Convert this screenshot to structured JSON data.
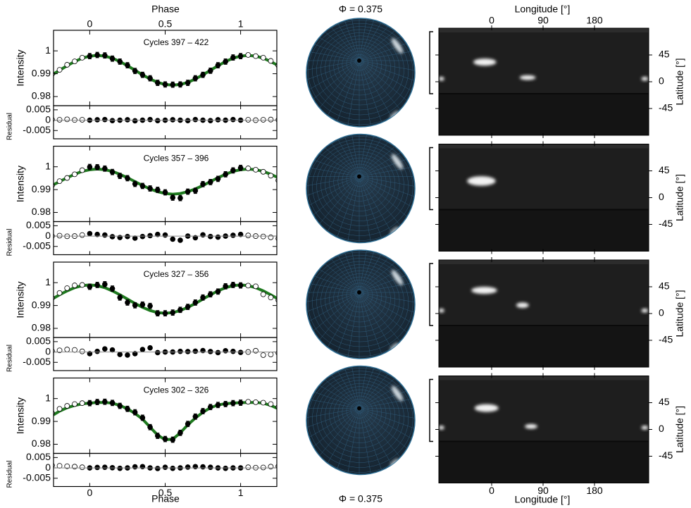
{
  "figure": {
    "phase_label": "Phase",
    "longitude_label": "Longitude [°]",
    "sphere_phase_label": "Φ = 0.375"
  },
  "chart_data": [
    {
      "type": "line",
      "title": "Cycles 397 – 422",
      "y_label": "Intensity",
      "xlim": [
        -0.24,
        1.24
      ],
      "xticks": [
        0,
        0.5,
        1
      ],
      "ylim": [
        0.976,
        1.009
      ],
      "yticks": [
        0.98,
        0.99,
        1
      ],
      "model": {
        "color": "#1f7a1f",
        "x": [
          -0.25,
          -0.2,
          -0.15,
          -0.1,
          -0.05,
          0,
          0.05,
          0.1,
          0.15,
          0.2,
          0.25,
          0.3,
          0.35,
          0.4,
          0.45,
          0.5,
          0.55,
          0.6,
          0.65,
          0.7,
          0.75,
          0.8,
          0.85,
          0.9,
          0.95,
          1,
          1.05,
          1.1,
          1.15,
          1.2,
          1.25
        ],
        "values": [
          0.9895,
          0.9915,
          0.9935,
          0.9953,
          0.9968,
          0.9977,
          0.998,
          0.9977,
          0.9968,
          0.9953,
          0.9935,
          0.9915,
          0.9895,
          0.9877,
          0.9862,
          0.9853,
          0.985,
          0.9853,
          0.9862,
          0.9877,
          0.9895,
          0.9915,
          0.9935,
          0.9953,
          0.9968,
          0.9977,
          0.998,
          0.9977,
          0.9968,
          0.9953,
          0.9935
        ]
      },
      "observed": {
        "x": [
          0,
          0.05,
          0.1,
          0.15,
          0.2,
          0.25,
          0.3,
          0.35,
          0.4,
          0.45,
          0.5,
          0.55,
          0.6,
          0.65,
          0.7,
          0.75,
          0.8,
          0.85,
          0.9,
          0.95,
          1
        ],
        "error": 0.0012,
        "values": [
          0.9977,
          0.9982,
          0.998,
          0.9966,
          0.9953,
          0.9937,
          0.9912,
          0.9895,
          0.988,
          0.986,
          0.9853,
          0.9852,
          0.9853,
          0.986,
          0.988,
          0.9895,
          0.9913,
          0.9937,
          0.9953,
          0.9971,
          0.9977
        ]
      },
      "repeated": {
        "x": [
          -0.25,
          -0.2,
          -0.15,
          -0.1,
          -0.05,
          1.05,
          1.1,
          1.15,
          1.2,
          1.25
        ],
        "values": [
          0.9898,
          0.9917,
          0.9939,
          0.9954,
          0.997,
          0.9982,
          0.9977,
          0.997,
          0.9956,
          0.9936
        ]
      },
      "residuals": {
        "y_label": "Residual",
        "ylim": [
          -0.009,
          0.007
        ],
        "yticks": [
          0.005,
          0,
          -0.005
        ],
        "observed": [
          0,
          0.0002,
          0.0003,
          -0.0002,
          0,
          0.0002,
          -0.0003,
          0,
          0.0003,
          -0.0002,
          0,
          0.0002,
          0,
          -0.0002,
          0.0003,
          0,
          -0.0002,
          0.0002,
          0,
          0.0003,
          0
        ],
        "repeated": [
          0.0003,
          0.0002,
          0.0004,
          0.0001,
          0.0002,
          0.0002,
          0,
          0.0002,
          0.0003,
          0.0001
        ]
      },
      "map": {
        "xlim": [
          -90,
          270
        ],
        "xticks": [
          0,
          90,
          180
        ],
        "ylim": [
          -90,
          90
        ],
        "yticks": [
          45,
          0,
          -45
        ],
        "latitude_label": "Latitude [°]",
        "spots": [
          {
            "lon": -12,
            "lat": 33,
            "dlon": 40,
            "dlat": 12
          },
          {
            "lon": 63,
            "lat": 7,
            "dlon": 28,
            "dlat": 8
          },
          {
            "lon": -88,
            "lat": 5,
            "dlon": 10,
            "dlat": 7
          },
          {
            "lon": 268,
            "lat": 5,
            "dlon": 12,
            "dlat": 7
          }
        ]
      }
    },
    {
      "type": "line",
      "title": "Cycles 357 – 396",
      "y_label": "Intensity",
      "xlim": [
        -0.24,
        1.24
      ],
      "xticks": [
        0,
        0.5,
        1
      ],
      "ylim": [
        0.976,
        1.009
      ],
      "yticks": [
        0.98,
        0.99,
        1
      ],
      "model": {
        "color": "#1f7a1f",
        "x": [
          -0.25,
          -0.2,
          -0.15,
          -0.1,
          -0.05,
          0,
          0.05,
          0.1,
          0.15,
          0.2,
          0.25,
          0.3,
          0.35,
          0.4,
          0.45,
          0.5,
          0.55,
          0.6,
          0.65,
          0.7,
          0.75,
          0.8,
          0.85,
          0.9,
          0.95,
          1,
          1.05,
          1.1,
          1.15,
          1.2,
          1.25
        ],
        "values": [
          0.9918,
          0.9935,
          0.9952,
          0.9967,
          0.998,
          0.9987,
          0.999,
          0.9987,
          0.998,
          0.9967,
          0.9952,
          0.9935,
          0.9918,
          0.9903,
          0.9891,
          0.9883,
          0.988,
          0.9883,
          0.9891,
          0.9903,
          0.9918,
          0.9935,
          0.9952,
          0.9967,
          0.998,
          0.9987,
          0.999,
          0.9987,
          0.998,
          0.9967,
          0.9952
        ]
      },
      "observed": {
        "x": [
          0,
          0.05,
          0.1,
          0.15,
          0.2,
          0.25,
          0.3,
          0.35,
          0.4,
          0.45,
          0.5,
          0.55,
          0.6,
          0.65,
          0.7,
          0.75,
          0.8,
          0.85,
          0.9,
          0.95,
          1
        ],
        "error": 0.0012,
        "values": [
          0.9999,
          0.9998,
          0.9992,
          0.9977,
          0.996,
          0.995,
          0.9925,
          0.9916,
          0.9905,
          0.9899,
          0.9888,
          0.9865,
          0.9863,
          0.9891,
          0.9895,
          0.9924,
          0.9933,
          0.9947,
          0.9967,
          0.9984,
          0.9995
        ]
      },
      "repeated": {
        "x": [
          -0.25,
          -0.2,
          -0.15,
          -0.1,
          -0.05,
          1.05,
          1.1,
          1.15,
          1.2,
          1.25
        ],
        "values": [
          0.9918,
          0.9937,
          0.9951,
          0.9967,
          0.9985,
          0.9993,
          0.9987,
          0.9978,
          0.9961,
          0.994
        ]
      },
      "residuals": {
        "y_label": "Residual",
        "ylim": [
          -0.009,
          0.007
        ],
        "yticks": [
          0.005,
          0,
          -0.005
        ],
        "observed": [
          0.0012,
          0.0008,
          0.0005,
          -0.0003,
          -0.0007,
          -0.0002,
          -0.001,
          -0.0002,
          0.0002,
          0.0008,
          0.0005,
          -0.0015,
          -0.002,
          0,
          -0.0008,
          0.0006,
          -0.0002,
          -0.0005,
          0,
          0.0004,
          0.0008
        ],
        "repeated": [
          0,
          0.0002,
          -0.0001,
          0,
          0.0005,
          0.0003,
          0,
          -0.0002,
          -0.0006,
          -0.0012
        ]
      },
      "map": {
        "xlim": [
          -90,
          270
        ],
        "xticks": [
          0,
          90,
          180
        ],
        "ylim": [
          -90,
          90
        ],
        "yticks": [
          45,
          0,
          -45
        ],
        "latitude_label": "Latitude [°]",
        "spots": [
          {
            "lon": -18,
            "lat": 28,
            "dlon": 50,
            "dlat": 16
          }
        ]
      }
    },
    {
      "type": "line",
      "title": "Cycles 327 – 356",
      "y_label": "Intensity",
      "xlim": [
        -0.24,
        1.24
      ],
      "xticks": [
        0,
        0.5,
        1
      ],
      "ylim": [
        0.976,
        1.009
      ],
      "yticks": [
        0.98,
        0.99,
        1
      ],
      "model": {
        "color": "#1f7a1f",
        "x": [
          -0.25,
          -0.2,
          -0.15,
          -0.1,
          -0.05,
          0,
          0.05,
          0.1,
          0.15,
          0.2,
          0.25,
          0.3,
          0.35,
          0.4,
          0.45,
          0.5,
          0.55,
          0.6,
          0.65,
          0.7,
          0.75,
          0.8,
          0.85,
          0.9,
          0.95,
          1,
          1.05,
          1.1,
          1.15,
          1.2,
          1.25
        ],
        "values": [
          0.9928,
          0.9947,
          0.9964,
          0.9978,
          0.9987,
          0.999,
          0.9987,
          0.9978,
          0.9964,
          0.9947,
          0.9928,
          0.9909,
          0.9892,
          0.9878,
          0.9869,
          0.9866,
          0.9869,
          0.9878,
          0.9892,
          0.9909,
          0.9928,
          0.9947,
          0.9964,
          0.9978,
          0.9987,
          0.999,
          0.9987,
          0.9978,
          0.9964,
          0.9947,
          0.9928
        ]
      },
      "observed": {
        "x": [
          0,
          0.05,
          0.1,
          0.15,
          0.2,
          0.25,
          0.3,
          0.35,
          0.4,
          0.45,
          0.5,
          0.55,
          0.6,
          0.65,
          0.7,
          0.75,
          0.8,
          0.85,
          0.9,
          0.95,
          1
        ],
        "error": 0.0012,
        "values": [
          0.9982,
          0.999,
          0.9993,
          0.9974,
          0.9935,
          0.9913,
          0.9901,
          0.9904,
          0.9898,
          0.9866,
          0.9866,
          0.9869,
          0.9881,
          0.9894,
          0.9913,
          0.9935,
          0.9949,
          0.9961,
          0.9984,
          0.999,
          0.9988
        ]
      },
      "repeated": {
        "x": [
          -0.25,
          -0.2,
          -0.15,
          -0.1,
          -0.05,
          1.05,
          1.1,
          1.15,
          1.2,
          1.25
        ],
        "values": [
          0.9933,
          0.9955,
          0.9976,
          0.9988,
          0.999,
          0.9987,
          0.9984,
          0.9949,
          0.9935,
          0.9923
        ]
      },
      "residuals": {
        "y_label": "Residual",
        "ylim": [
          -0.009,
          0.007
        ],
        "yticks": [
          0.005,
          0,
          -0.005
        ],
        "observed": [
          -0.0008,
          0.0003,
          0.0015,
          0.001,
          -0.0012,
          -0.0015,
          -0.0008,
          0.0012,
          0.002,
          -0.0003,
          0,
          0,
          0.0003,
          0.0002,
          0.0004,
          0.0007,
          0.0002,
          -0.0003,
          0.0006,
          0.0003,
          -0.0002
        ],
        "repeated": [
          0.0005,
          0.0008,
          0.0012,
          0.001,
          0.0003,
          0,
          0.0006,
          -0.0015,
          -0.0012,
          -0.0005
        ]
      },
      "map": {
        "xlim": [
          -90,
          270
        ],
        "xticks": [
          0,
          90,
          180
        ],
        "ylim": [
          -90,
          90
        ],
        "yticks": [
          45,
          0,
          -45
        ],
        "latitude_label": "Latitude [°]",
        "spots": [
          {
            "lon": -13,
            "lat": 39,
            "dlon": 45,
            "dlat": 12
          },
          {
            "lon": 54,
            "lat": 14,
            "dlon": 22,
            "dlat": 9
          },
          {
            "lon": -88,
            "lat": 5,
            "dlon": 10,
            "dlat": 7
          },
          {
            "lon": 268,
            "lat": 5,
            "dlon": 12,
            "dlat": 7
          }
        ]
      }
    },
    {
      "type": "line",
      "title": "Cycles 302 – 326",
      "y_label": "Intensity",
      "xlim": [
        -0.24,
        1.24
      ],
      "xticks": [
        0,
        0.5,
        1
      ],
      "ylim": [
        0.976,
        1.009
      ],
      "yticks": [
        0.98,
        0.99,
        1
      ],
      "model": {
        "color": "#1f7a1f",
        "x": [
          -0.25,
          -0.2,
          -0.15,
          -0.1,
          -0.05,
          0,
          0.05,
          0.1,
          0.15,
          0.2,
          0.25,
          0.3,
          0.35,
          0.4,
          0.45,
          0.5,
          0.55,
          0.6,
          0.65,
          0.7,
          0.75,
          0.8,
          0.85,
          0.9,
          0.95,
          1,
          1.05,
          1.1,
          1.15,
          1.2,
          1.25
        ],
        "values": [
          0.9925,
          0.9945,
          0.996,
          0.997,
          0.9977,
          0.998,
          0.9983,
          0.9983,
          0.998,
          0.997,
          0.9955,
          0.9935,
          0.991,
          0.9875,
          0.984,
          0.982,
          0.9822,
          0.985,
          0.9885,
          0.9915,
          0.994,
          0.996,
          0.9972,
          0.9978,
          0.998,
          0.9982,
          0.9983,
          0.9983,
          0.998,
          0.997,
          0.9955
        ]
      },
      "observed": {
        "x": [
          0,
          0.05,
          0.1,
          0.15,
          0.2,
          0.25,
          0.3,
          0.35,
          0.4,
          0.45,
          0.5,
          0.55,
          0.6,
          0.65,
          0.7,
          0.75,
          0.8,
          0.85,
          0.9,
          0.95,
          1
        ],
        "error": 0.0012,
        "values": [
          0.998,
          0.9985,
          0.9986,
          0.9981,
          0.9968,
          0.9955,
          0.994,
          0.9916,
          0.9875,
          0.9837,
          0.9823,
          0.982,
          0.985,
          0.9889,
          0.9921,
          0.9945,
          0.9963,
          0.9972,
          0.9976,
          0.998,
          0.9982
        ]
      },
      "repeated": {
        "x": [
          -0.25,
          -0.2,
          -0.15,
          -0.1,
          -0.05,
          1.05,
          1.1,
          1.15,
          1.2,
          1.25
        ],
        "values": [
          0.9937,
          0.9955,
          0.9968,
          0.9976,
          0.998,
          0.9986,
          0.9984,
          0.9982,
          0.9976,
          0.9963
        ]
      },
      "residuals": {
        "y_label": "Residual",
        "ylim": [
          -0.009,
          0.007
        ],
        "yticks": [
          0.005,
          0,
          -0.005
        ],
        "observed": [
          0,
          0.0002,
          0.0003,
          0.0001,
          -0.0002,
          0,
          0.0005,
          0.0006,
          0,
          -0.0003,
          0.0003,
          -0.0002,
          0,
          0.0004,
          0.0006,
          0.0005,
          0.0003,
          0,
          -0.0002,
          0,
          0
        ],
        "repeated": [
          0.0012,
          0.001,
          0.0008,
          0.0006,
          0.0003,
          0.0003,
          0.0001,
          0.0002,
          0.0006,
          0.0008
        ]
      },
      "map": {
        "xlim": [
          -90,
          270
        ],
        "xticks": [
          0,
          90,
          180
        ],
        "ylim": [
          -90,
          90
        ],
        "yticks": [
          45,
          0,
          -45
        ],
        "latitude_label": "Latitude [°]",
        "spots": [
          {
            "lon": -9,
            "lat": 36,
            "dlon": 42,
            "dlat": 13
          },
          {
            "lon": 69,
            "lat": 5,
            "dlon": 22,
            "dlat": 8
          },
          {
            "lon": -88,
            "lat": 3,
            "dlon": 10,
            "dlat": 7
          },
          {
            "lon": 268,
            "lat": 3,
            "dlon": 12,
            "dlat": 7
          }
        ]
      }
    }
  ]
}
